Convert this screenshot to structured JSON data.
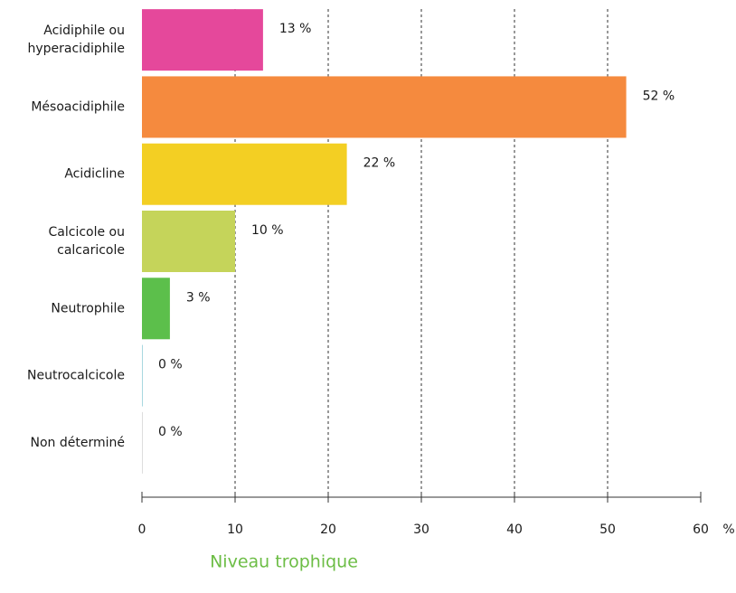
{
  "chart_data": {
    "type": "barh",
    "title": "Niveau trophique",
    "title_color": "#6cbd45",
    "categories": [
      "Acidiphile ou\nhyperacidiphile",
      "Mésoacidiphile",
      "Acidicline",
      "Calcicole ou\ncalcaricole",
      "Neutrophile",
      "Neutrocalcicole",
      "Non déterminé"
    ],
    "values": [
      13,
      52,
      22,
      10,
      3,
      0,
      0
    ],
    "value_labels": [
      "13 %",
      "52 %",
      "22 %",
      "10 %",
      "3 %",
      "0 %",
      "0 %"
    ],
    "colors": [
      "#e5489b",
      "#f58a3e",
      "#f3cf23",
      "#c5d45a",
      "#5cbf4b",
      "#a8d8e0",
      "#dddddd"
    ],
    "xlim": [
      0,
      60
    ],
    "xticks": [
      0,
      10,
      20,
      30,
      40,
      50,
      60
    ],
    "x_unit": "%",
    "grid": true
  }
}
